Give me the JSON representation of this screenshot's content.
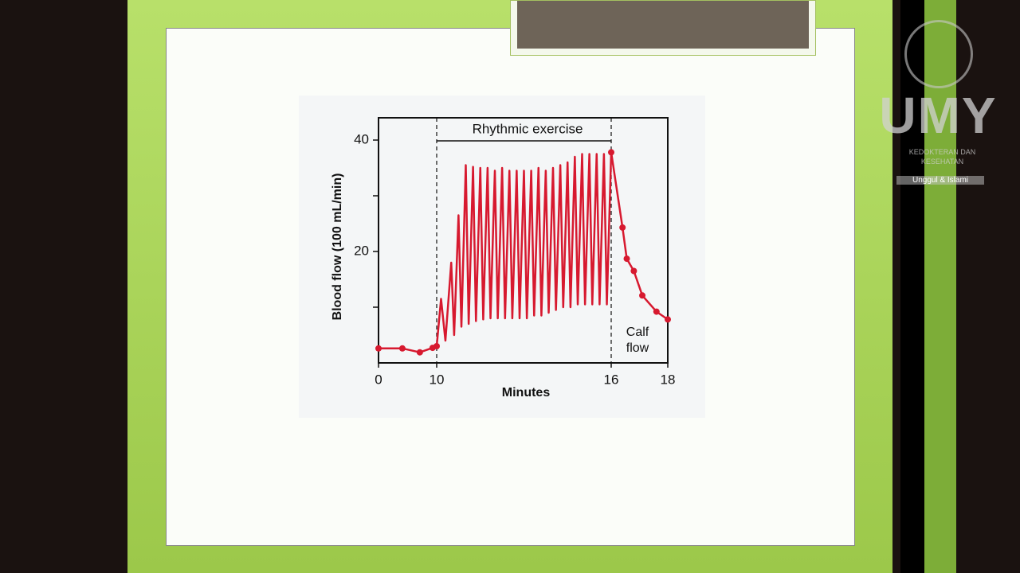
{
  "chart_data": {
    "type": "line",
    "title": "Rhythmic exercise",
    "xlabel": "Minutes",
    "ylabel": "Blood flow (100 mL/min)",
    "annotation": "Calf flow",
    "xlim": [
      0,
      18
    ],
    "xticks": [
      0,
      10,
      16,
      18
    ],
    "ylim": [
      0,
      44
    ],
    "yticks": [
      20,
      40
    ],
    "yminorticks": [
      10,
      30
    ],
    "exercise_span": [
      10,
      16
    ],
    "series": [
      {
        "color": "#d7192f",
        "markers": true,
        "x": [
          0,
          4.1,
          7.1,
          9.3,
          10
        ],
        "values": [
          2.6,
          2.6,
          1.9,
          2.7,
          3
        ]
      },
      {
        "color": "#d7192f",
        "markers": false,
        "x": [
          10,
          10.15,
          10.3,
          10.5,
          10.6,
          10.75,
          10.85,
          11.0,
          11.1,
          11.25,
          11.35,
          11.5,
          11.6,
          11.75,
          11.85,
          12.0,
          12.1,
          12.25,
          12.35,
          12.5,
          12.6,
          12.75,
          12.85,
          13.0,
          13.1,
          13.25,
          13.35,
          13.5,
          13.6,
          13.75,
          13.85,
          14.0,
          14.1,
          14.25,
          14.35,
          14.5,
          14.6,
          14.75,
          14.85,
          15.0,
          15.1,
          15.25,
          15.35,
          15.5,
          15.6,
          15.75,
          15.85,
          16.0
        ],
        "values": [
          3,
          11.5,
          4,
          18,
          5,
          26.5,
          6.5,
          35.5,
          7,
          35.2,
          7.5,
          35,
          7.8,
          35,
          8,
          34.5,
          8,
          35,
          8,
          34.5,
          8,
          34.5,
          8,
          34.5,
          8,
          34.5,
          8.5,
          35,
          8.5,
          34.5,
          9,
          35,
          9.5,
          35.5,
          10,
          36,
          10,
          37,
          10.5,
          37.5,
          10.5,
          37.5,
          10.5,
          37.5,
          10.5,
          37.5,
          10.5,
          37.8
        ]
      },
      {
        "color": "#d7192f",
        "markers": true,
        "x": [
          16,
          16.4,
          16.55,
          16.8,
          17.1,
          17.6,
          18
        ],
        "values": [
          37.8,
          24.3,
          18.7,
          16.5,
          12.1,
          9.2,
          7.8
        ]
      }
    ]
  },
  "branding": {
    "logo": "UMY",
    "faculty": [
      "KEDOKTERAN DAN",
      "KESEHATAN"
    ],
    "motto": "Unggul & Islami"
  }
}
